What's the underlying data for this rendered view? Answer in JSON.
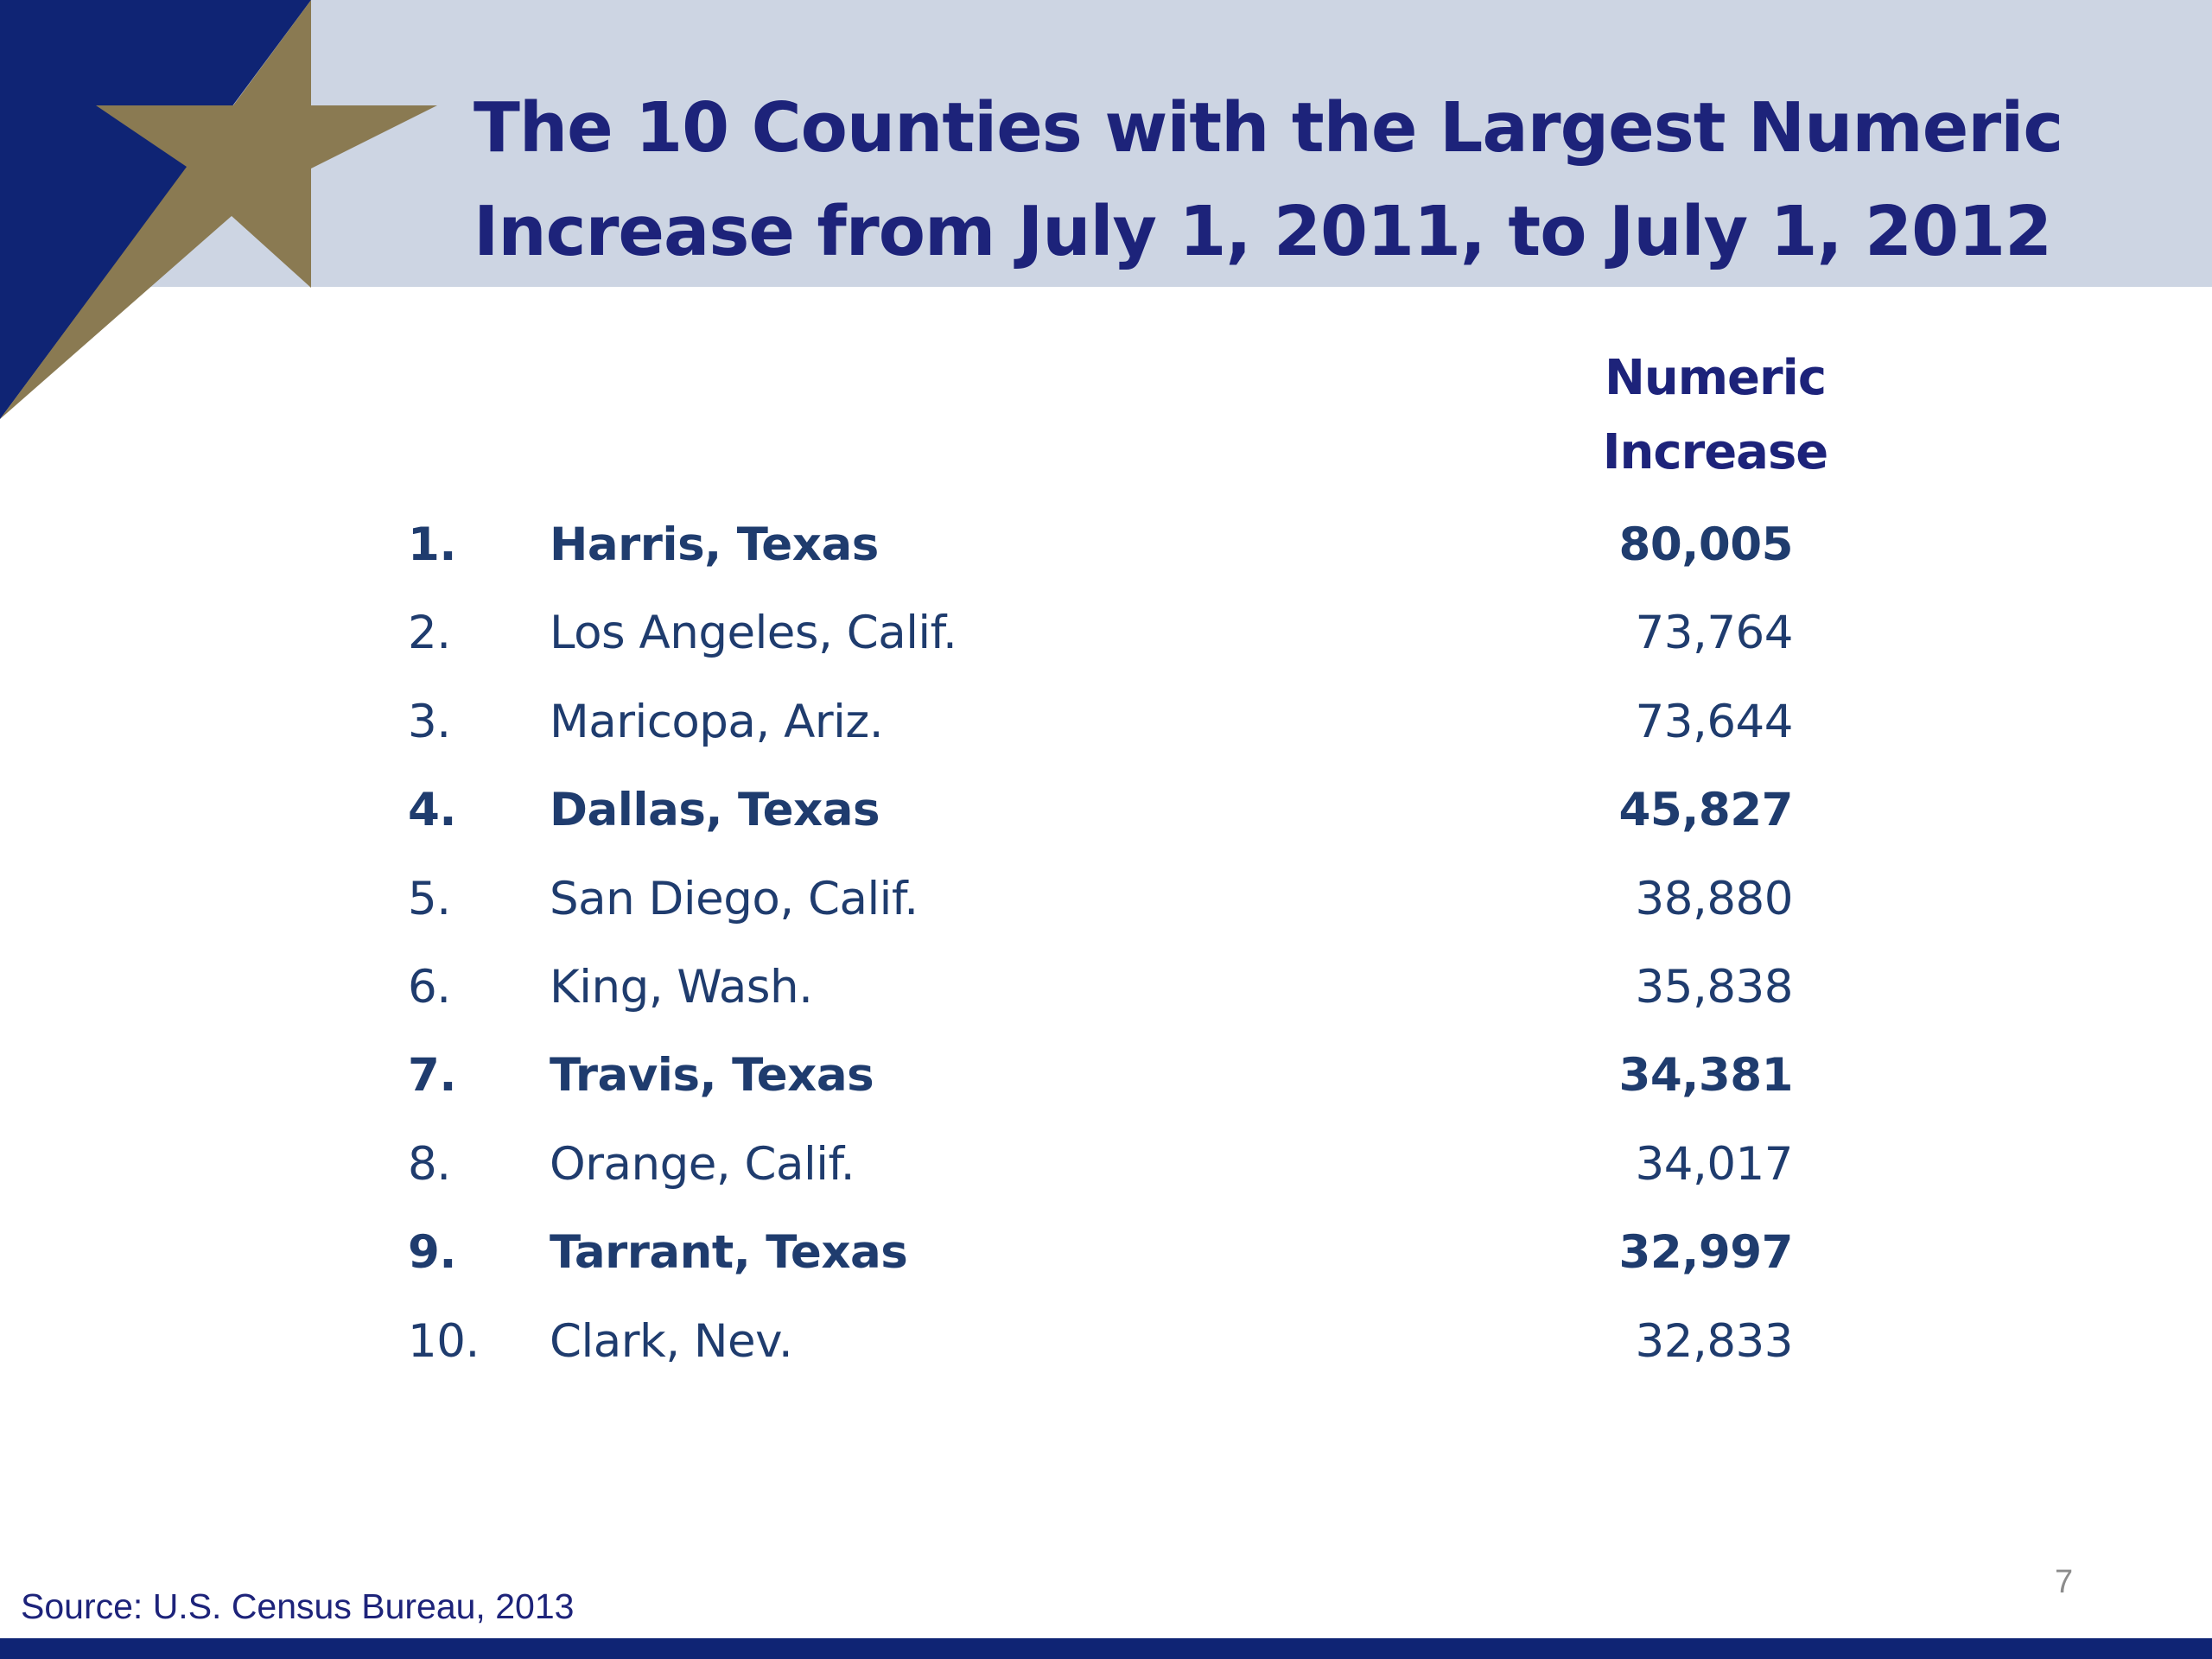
{
  "slide": {
    "title_line1": "The 10 Counties with the Largest Numeric",
    "title_line2": "Increase from July 1, 2011, to July 1, 2012",
    "column_header_line1": "Numeric",
    "column_header_line2": "Increase",
    "rows": [
      {
        "rank": "1.",
        "county": "Harris, Texas",
        "value": "80,005",
        "highlighted": true
      },
      {
        "rank": "2.",
        "county": "Los Angeles, Calif.",
        "value": "73,764",
        "highlighted": false
      },
      {
        "rank": "3.",
        "county": "Maricopa, Ariz.",
        "value": "73,644",
        "highlighted": false
      },
      {
        "rank": "4.",
        "county": "Dallas, Texas",
        "value": "45,827",
        "highlighted": true
      },
      {
        "rank": "5.",
        "county": "San Diego, Calif.",
        "value": "38,880",
        "highlighted": false
      },
      {
        "rank": "6.",
        "county": "King, Wash.",
        "value": "35,838",
        "highlighted": false
      },
      {
        "rank": "7.",
        "county": "Travis, Texas",
        "value": "34,381",
        "highlighted": true
      },
      {
        "rank": "8.",
        "county": "Orange, Calif.",
        "value": "34,017",
        "highlighted": false
      },
      {
        "rank": "9.",
        "county": "Tarrant, Texas",
        "value": "32,997",
        "highlighted": true
      },
      {
        "rank": "10.",
        "county": "Clark, Nev.",
        "value": "32,833",
        "highlighted": false
      }
    ],
    "source": "Source: U.S. Census Bureau, 2013",
    "page_number": "7"
  },
  "colors": {
    "title": "#1d237a",
    "body_text": "#1f3c6e",
    "header_band": "#cdd5e3",
    "corner_navy": "#0f2474",
    "star_gold": "#8a7a52",
    "footer_bar": "#0f2474",
    "page_number": "#8c8c8c"
  },
  "icons": {
    "corner_logo": "star-icon"
  }
}
